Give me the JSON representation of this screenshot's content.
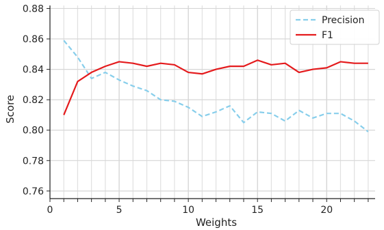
{
  "chart_data": {
    "type": "line",
    "title": "",
    "xlabel": "Weights",
    "ylabel": "Score",
    "xlim": [
      0,
      23.5
    ],
    "ylim": [
      0.755,
      0.882
    ],
    "x_ticks": [
      0,
      5,
      10,
      15,
      20
    ],
    "x_tick_labels": [
      "0",
      "5",
      "10",
      "15",
      "20"
    ],
    "y_ticks": [
      0.76,
      0.78,
      0.8,
      0.82,
      0.84,
      0.86,
      0.88
    ],
    "y_tick_labels": [
      "0.76",
      "0.78",
      "0.80",
      "0.82",
      "0.84",
      "0.86",
      "0.88"
    ],
    "grid": true,
    "legend": "top-right",
    "x": [
      1,
      2,
      3,
      4,
      5,
      6,
      7,
      8,
      9,
      10,
      11,
      12,
      13,
      14,
      15,
      16,
      17,
      18,
      19,
      20,
      21,
      22,
      23
    ],
    "series": [
      {
        "name": "Precision",
        "color": "#87CEEB",
        "style": "dashed",
        "values": [
          0.859,
          0.848,
          0.834,
          0.838,
          0.833,
          0.829,
          0.826,
          0.82,
          0.819,
          0.815,
          0.809,
          0.812,
          0.816,
          0.805,
          0.812,
          0.811,
          0.806,
          0.813,
          0.808,
          0.811,
          0.811,
          0.806,
          0.799
        ]
      },
      {
        "name": "F1",
        "color": "#E41A1C",
        "style": "solid",
        "values": [
          0.81,
          0.832,
          0.838,
          0.842,
          0.845,
          0.844,
          0.842,
          0.844,
          0.843,
          0.838,
          0.837,
          0.84,
          0.842,
          0.842,
          0.846,
          0.843,
          0.844,
          0.838,
          0.84,
          0.841,
          0.845,
          0.844,
          0.844
        ]
      }
    ]
  }
}
